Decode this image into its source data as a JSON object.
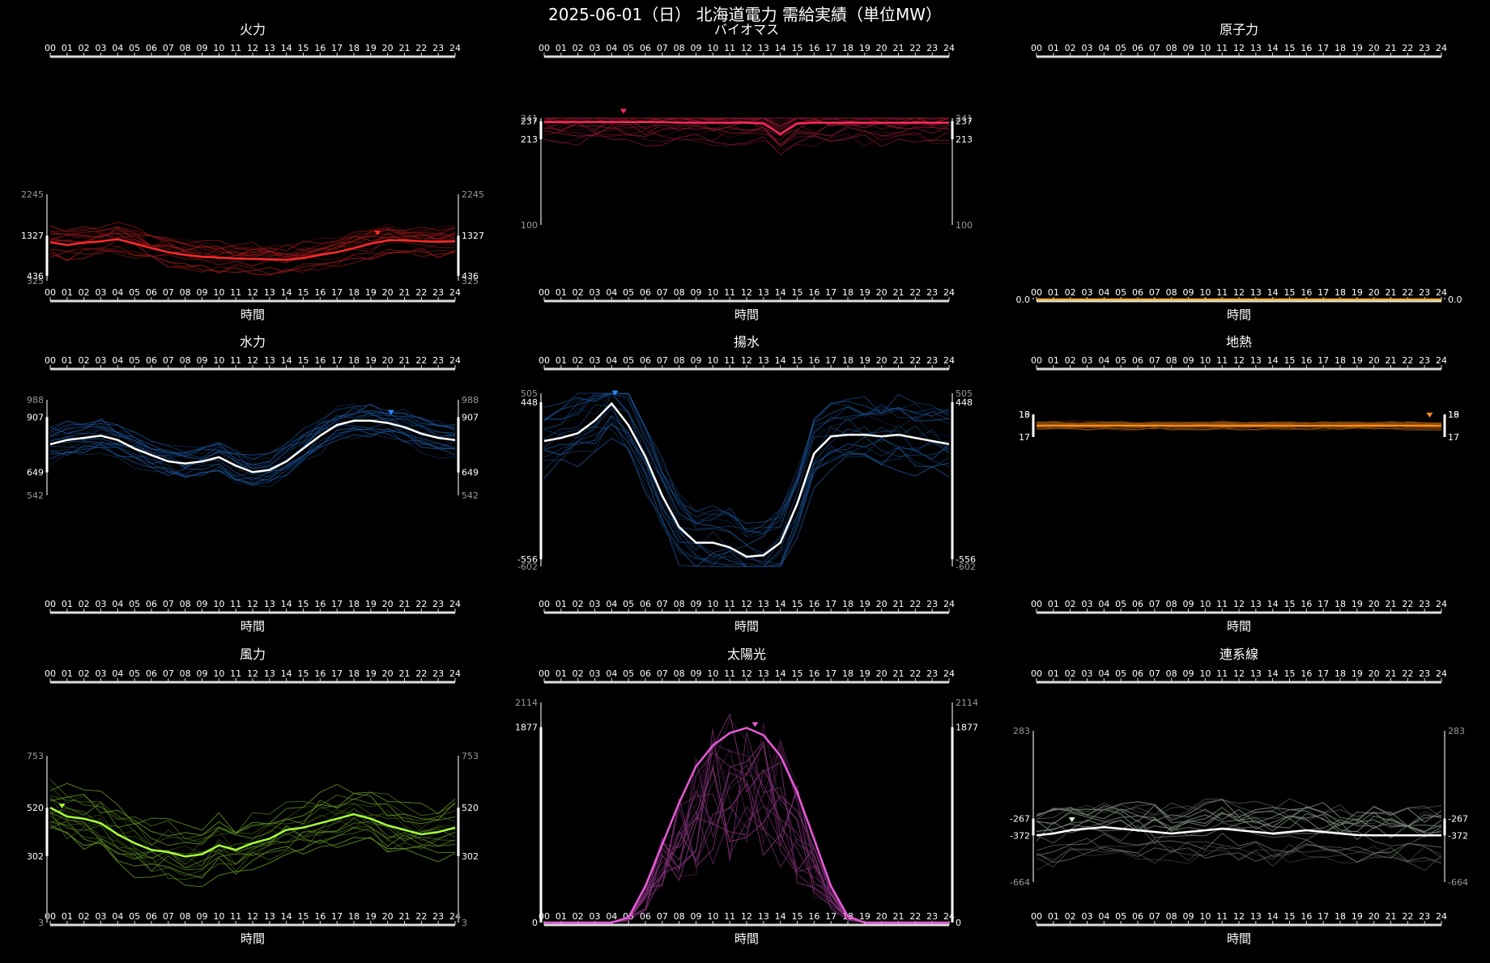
{
  "title": "2025-06-01（日） 北海道電力 需給実績（単位MW）",
  "hour_ticks": [
    "00",
    "01",
    "02",
    "03",
    "04",
    "05",
    "06",
    "07",
    "08",
    "09",
    "10",
    "11",
    "12",
    "13",
    "14",
    "15",
    "16",
    "17",
    "18",
    "19",
    "20",
    "21",
    "22",
    "23",
    "24"
  ],
  "xlabel": "時間",
  "chart_data": [
    {
      "type": "line",
      "name": "火力",
      "color": "#ff2a2a",
      "axis_labels": {
        "max": "2245",
        "upper": "1327",
        "lower": "436",
        "min": "325"
      },
      "ylim": [
        325,
        2245
      ],
      "band": [
        436,
        1327
      ],
      "marker_hour": 19.4,
      "current_series": [
        1180,
        1120,
        1170,
        1200,
        1250,
        1150,
        1050,
        960,
        900,
        860,
        840,
        820,
        810,
        800,
        790,
        830,
        900,
        960,
        1050,
        1150,
        1220,
        1230,
        1200,
        1190,
        1200
      ]
    },
    {
      "type": "line",
      "name": "バイオマス",
      "color": "#ff2a5c",
      "axis_labels": {
        "max": "241",
        "upper": "237",
        "lower": "213",
        "min": "100"
      },
      "ylim": [
        100,
        241
      ],
      "band": [
        213,
        237
      ],
      "marker_hour": 4.7,
      "current_series": [
        236,
        236,
        236,
        236,
        236,
        236,
        236,
        236,
        235,
        235,
        235,
        235,
        235,
        234,
        220,
        234,
        235,
        235,
        235,
        235,
        235,
        235,
        235,
        235,
        235
      ]
    },
    {
      "type": "line",
      "name": "原子力",
      "color": "#f4b02a",
      "axis_labels": {
        "upper": "0.0"
      },
      "ylim": [
        0,
        1
      ],
      "band": [
        0,
        0
      ],
      "current_series": [
        0,
        0,
        0,
        0,
        0,
        0,
        0,
        0,
        0,
        0,
        0,
        0,
        0,
        0,
        0,
        0,
        0,
        0,
        0,
        0,
        0,
        0,
        0,
        0,
        0
      ]
    },
    {
      "type": "line",
      "name": "水力",
      "color": "#2e8cff",
      "axis_labels": {
        "max": "988",
        "upper": "907",
        "lower": "649",
        "min": "542"
      },
      "ylim": [
        542,
        988
      ],
      "band": [
        649,
        907
      ],
      "marker_hour": 20.2,
      "current_series": [
        780,
        800,
        810,
        820,
        800,
        760,
        730,
        700,
        690,
        700,
        720,
        680,
        650,
        660,
        700,
        760,
        820,
        870,
        890,
        890,
        880,
        860,
        830,
        810,
        800
      ]
    },
    {
      "type": "line",
      "name": "揚水",
      "color": "#2e8cff",
      "axis_labels": {
        "max": "505",
        "upper": "448",
        "lower": "-556",
        "min": "-602"
      },
      "ylim": [
        -602,
        505
      ],
      "band": [
        -556,
        448
      ],
      "marker_hour": 4.2,
      "current_series": [
        200,
        220,
        250,
        330,
        440,
        300,
        100,
        -150,
        -350,
        -450,
        -450,
        -480,
        -540,
        -530,
        -450,
        -200,
        120,
        230,
        240,
        240,
        230,
        240,
        220,
        200,
        180
      ]
    },
    {
      "type": "line",
      "name": "地熱",
      "color": "#ff8c1a",
      "axis_labels": {
        "max": "19",
        "upper": "18",
        "lower": "17"
      },
      "ylim": [
        17,
        19
      ],
      "band": [
        17,
        19
      ],
      "marker_hour": 23.3,
      "current_series": [
        18,
        18,
        18,
        18,
        18,
        18,
        18,
        18,
        18,
        18,
        18,
        18,
        18,
        18,
        18,
        18,
        18,
        18,
        18,
        18,
        18,
        18,
        18,
        18,
        18
      ]
    },
    {
      "type": "line",
      "name": "風力",
      "color": "#a8ff3c",
      "axis_labels": {
        "max": "753",
        "upper": "520",
        "lower": "302",
        "min": "3"
      },
      "ylim": [
        3,
        753
      ],
      "band": [
        302,
        520
      ],
      "marker_hour": 0.7,
      "current_series": [
        520,
        480,
        470,
        450,
        400,
        360,
        330,
        320,
        300,
        310,
        350,
        330,
        360,
        380,
        420,
        430,
        450,
        470,
        490,
        470,
        440,
        420,
        400,
        410,
        430
      ]
    },
    {
      "type": "area",
      "name": "太陽光",
      "color": "#e85ad8",
      "axis_labels": {
        "max": "2114",
        "upper": "1877",
        "lower": "0"
      },
      "ylim": [
        0,
        2114
      ],
      "band": [
        0,
        1877
      ],
      "marker_hour": 12.5,
      "current_series": [
        0,
        0,
        0,
        0,
        0,
        50,
        350,
        750,
        1150,
        1500,
        1700,
        1820,
        1870,
        1800,
        1600,
        1250,
        800,
        350,
        60,
        0,
        0,
        0,
        0,
        0,
        0
      ]
    },
    {
      "type": "line",
      "name": "連系線",
      "color": "#d8f0d8",
      "axis_labels": {
        "max": "283",
        "upper": "-267",
        "lower": "-372",
        "min": "-664"
      },
      "ylim": [
        -664,
        283
      ],
      "band": [
        -372,
        -267
      ],
      "marker_hour": 2.1,
      "current_series": [
        -372,
        -360,
        -340,
        -330,
        -320,
        -330,
        -340,
        -350,
        -360,
        -350,
        -340,
        -330,
        -340,
        -350,
        -360,
        -350,
        -340,
        -350,
        -360,
        -370,
        -372,
        -372,
        -372,
        -372,
        -372
      ]
    }
  ]
}
